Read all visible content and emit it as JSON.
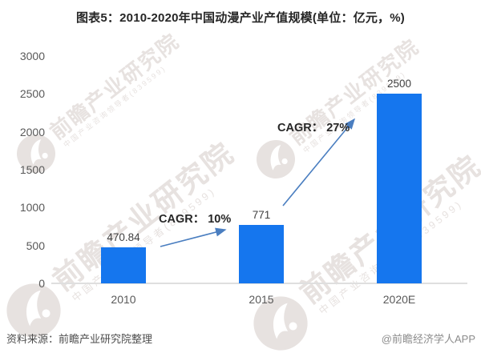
{
  "title": "图表5：2010-2020年中国动漫产业产值规模(单位：亿元，%)",
  "watermark": {
    "text": "前瞻产业研究院",
    "subtext": "中国产业咨询领导者(839599)"
  },
  "footer": {
    "source": "资料来源：前瞻产业研究院整理",
    "credit": "@前瞻经济学人APP"
  },
  "colors": {
    "bar": "#1576ee",
    "arrow": "#4a7ec0",
    "title_text": "#262626",
    "axis_text": "#595959",
    "value_text": "#404040",
    "baseline": "#dfdfdf",
    "source_text": "#4d4d4d",
    "credit_text": "#8c8c8c",
    "watermark": "#e7e2e0"
  },
  "chart_data": {
    "type": "bar",
    "title": "图表5：2010-2020年中国动漫产业产值规模",
    "unit_note": "(单位：亿元，%)",
    "categories": [
      "2010",
      "2015",
      "2020E"
    ],
    "values": [
      470.84,
      771,
      2500
    ],
    "value_labels": [
      "470.84",
      "771",
      "2500"
    ],
    "xlabel": "",
    "ylabel": "",
    "ylim": [
      0,
      3000
    ],
    "ytick_interval": 500,
    "yticks": [
      "3000",
      "2500",
      "2000",
      "1500",
      "1000",
      "500",
      "0"
    ],
    "grid": false,
    "legend": false,
    "annotations": [
      {
        "text": "CAGR： 10%",
        "from": "2010",
        "to": "2015"
      },
      {
        "text": "CAGR： 27%",
        "from": "2015",
        "to": "2020E"
      }
    ]
  }
}
